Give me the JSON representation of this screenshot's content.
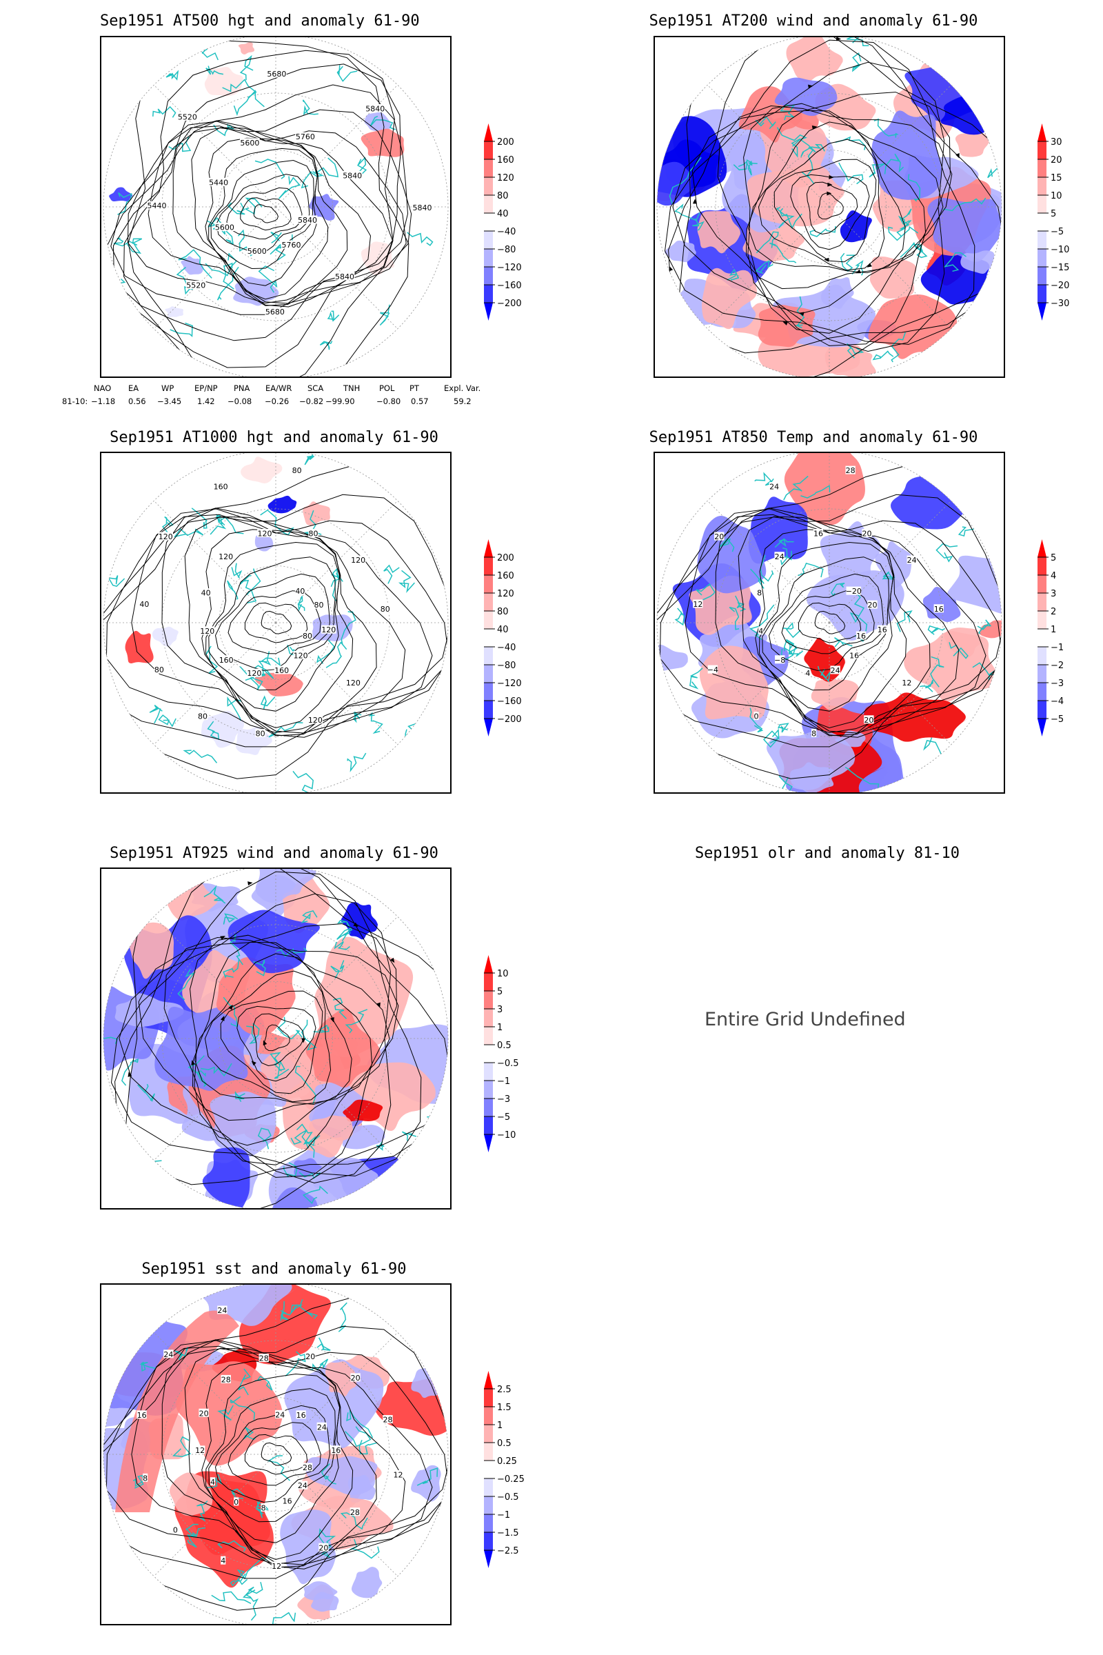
{
  "panels": [
    {
      "id": "p500",
      "title": "Sep1951 AT500 hgt and anomaly 61-90",
      "kind": "hgt",
      "legend": [
        "200",
        "160",
        "120",
        "80",
        "40",
        "−40",
        "−80",
        "−120",
        "−160",
        "−200"
      ],
      "contour_labels": [
        "5840",
        "5840",
        "5760",
        "5680",
        "5600",
        "5520",
        "5600",
        "5440",
        "5440",
        "5520",
        "5600",
        "5680",
        "5760",
        "5840",
        "5840",
        "5840"
      ]
    },
    {
      "id": "p200",
      "title": "Sep1951 AT200 wind and anomaly 61-90",
      "kind": "wind",
      "legend": [
        "30",
        "20",
        "15",
        "10",
        "5",
        "−5",
        "−10",
        "−15",
        "−20",
        "−30"
      ],
      "contour_labels": []
    },
    {
      "id": "p1000",
      "title": "Sep1951 AT1000 hgt and anomaly 61-90",
      "kind": "hgt",
      "legend": [
        "200",
        "160",
        "120",
        "80",
        "40",
        "−40",
        "−80",
        "−120",
        "−160",
        "−200"
      ],
      "contour_labels": [
        "80",
        "120",
        "120",
        "120",
        "160",
        "80",
        "120",
        "80",
        "160",
        "80",
        "120",
        "40",
        "40",
        "120",
        "120",
        "160",
        "120",
        "80",
        "80",
        "40",
        "120",
        "80",
        "80",
        "120"
      ]
    },
    {
      "id": "p850",
      "title": "Sep1951 AT850 Temp and anomaly 61-90",
      "kind": "temp",
      "legend": [
        "5",
        "4",
        "3",
        "2",
        "1",
        "−1",
        "−2",
        "−3",
        "−4",
        "−5"
      ],
      "contour_labels": [
        "16",
        "12",
        "16",
        "20",
        "24",
        "8",
        "4",
        "0",
        "−8",
        "−4",
        "4",
        "12",
        "8",
        "20",
        "24",
        "24",
        "16",
        "28",
        "20",
        "−20",
        "24",
        "20",
        "16",
        "16"
      ]
    },
    {
      "id": "p925",
      "title": "Sep1951 AT925 wind and anomaly 61-90",
      "kind": "wind",
      "legend": [
        "10",
        "5",
        "3",
        "1",
        "0.5",
        "−0.5",
        "−1",
        "−3",
        "−5",
        "−10"
      ],
      "contour_labels": []
    },
    {
      "id": "polr",
      "title": "Sep1951 olr and anomaly 81-10",
      "kind": "undefined",
      "legend": [],
      "contour_labels": []
    },
    {
      "id": "psst",
      "title": "Sep1951 sst and anomaly 61-90",
      "kind": "sst",
      "legend": [
        "2.5",
        "1.5",
        "1",
        "0.5",
        "0.25",
        "−0.25",
        "−0.5",
        "−1",
        "−1.5",
        "−2.5"
      ],
      "contour_labels": [
        "28",
        "28",
        "24",
        "20",
        "16",
        "12",
        "8",
        "4",
        "0",
        "0",
        "4",
        "8",
        "12",
        "16",
        "20",
        "24",
        "28",
        "24",
        "28",
        "24",
        "20",
        "16",
        "20",
        "24",
        "28",
        "16",
        "12"
      ]
    }
  ],
  "undefined_text": "Entire Grid Undefined",
  "teleconnections": {
    "row_label": "81-10:",
    "headers": [
      "NAO",
      "EA",
      "WP",
      "EP/NP",
      "PNA",
      "EA/WR",
      "SCA",
      "TNH",
      "POL",
      "PT",
      "Expl. Var."
    ],
    "values": [
      "−1.18",
      "0.56",
      "−3.45",
      "1.42",
      "−0.08",
      "−0.26",
      "−0.82",
      "−99.90",
      "−0.80",
      "0.57",
      "59.2"
    ]
  },
  "colors": {
    "red_scale": [
      "#ffe6e6",
      "#ffb3b3",
      "#ff8080",
      "#ff3a3a",
      "#f00000"
    ],
    "blue_scale": [
      "#e6e6ff",
      "#b3b3ff",
      "#8080ff",
      "#3a3aff",
      "#0000f0"
    ],
    "coast": "#20c0c0"
  }
}
